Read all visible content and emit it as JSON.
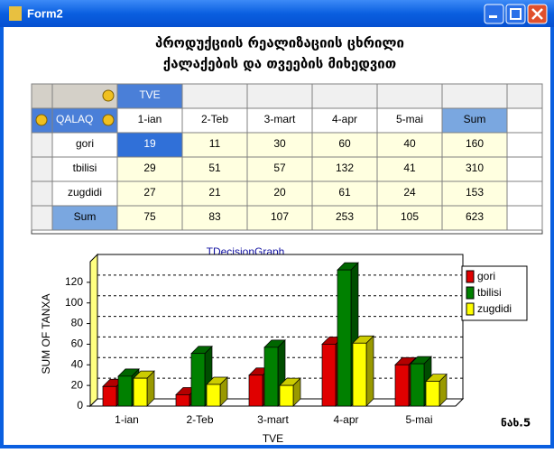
{
  "window": {
    "title": "Form2"
  },
  "heading": [
    "პროდუქციის რეალიზაციის ცხრილი",
    "ქალაქების და თვეების მიხედვით"
  ],
  "table": {
    "column_dimension": "TVE",
    "row_dimension": "QALAQ",
    "columns": [
      "1-ian",
      "2-Teb",
      "3-mart",
      "4-apr",
      "5-mai",
      "Sum"
    ],
    "rows": [
      {
        "label": "gori",
        "values": [
          19,
          11,
          30,
          60,
          40,
          160
        ]
      },
      {
        "label": "tbilisi",
        "values": [
          29,
          51,
          57,
          132,
          41,
          310
        ]
      },
      {
        "label": "zugdidi",
        "values": [
          27,
          21,
          20,
          61,
          24,
          153
        ]
      },
      {
        "label": "Sum",
        "values": [
          75,
          83,
          107,
          253,
          105,
          623
        ]
      }
    ]
  },
  "chart_data": {
    "type": "bar3d",
    "title": "TDecisionGraph",
    "x_label": "TVE",
    "y_label": "SUM OF TANXA",
    "categories": [
      "1-ian",
      "2-Teb",
      "3-mart",
      "4-apr",
      "5-mai"
    ],
    "series": [
      {
        "name": "gori",
        "color": "#e00000",
        "values": [
          19,
          11,
          30,
          60,
          40
        ]
      },
      {
        "name": "tbilisi",
        "color": "#008000",
        "values": [
          29,
          51,
          57,
          132,
          41
        ]
      },
      {
        "name": "zugdidi",
        "color": "#ffff00",
        "values": [
          27,
          21,
          20,
          61,
          24
        ]
      }
    ],
    "ylim": [
      0,
      140
    ],
    "yticks": [
      0,
      20,
      40,
      60,
      80,
      100,
      120
    ],
    "grid": true,
    "legend": "top-right"
  },
  "figure_label": "ნახ.5"
}
